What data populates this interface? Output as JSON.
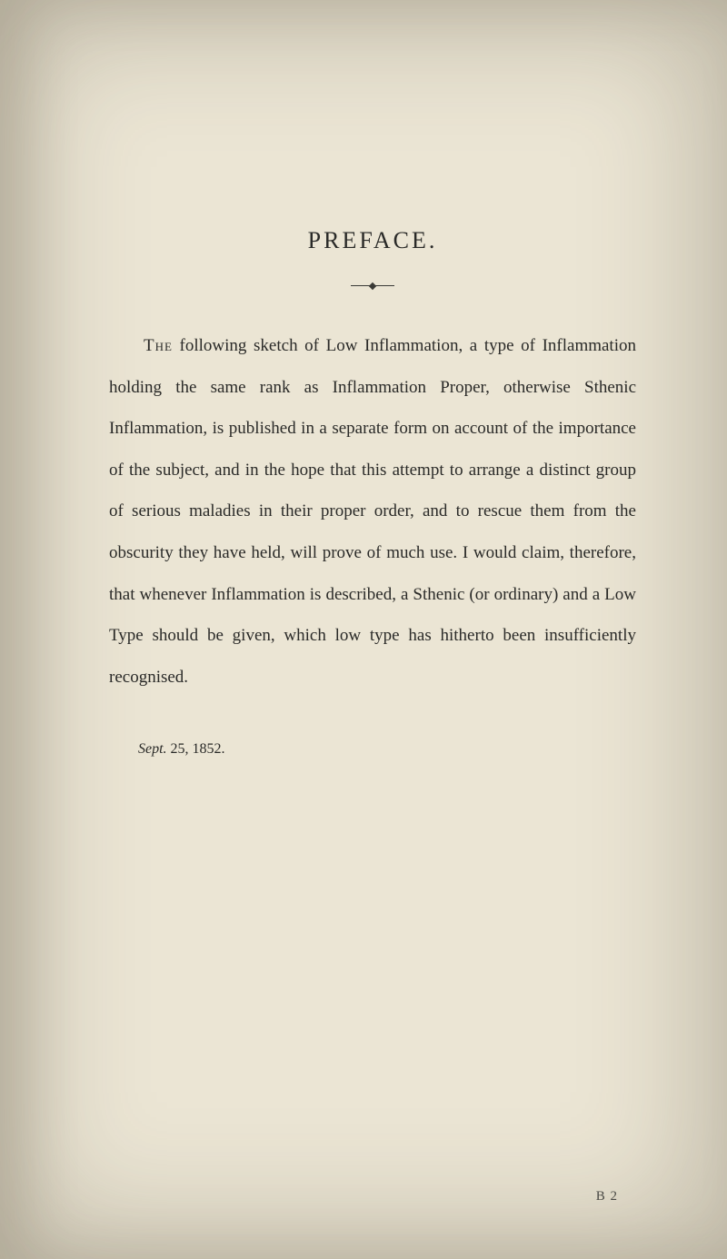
{
  "page": {
    "background_color": "#ebe5d4",
    "text_color": "#2a2a28",
    "title": "PREFACE.",
    "title_fontsize": 26,
    "title_letterspacing": 3,
    "divider_color": "#3a3a36",
    "body_fontsize": 19,
    "body_lineheight": 2.4,
    "opening_smallcaps": "The",
    "body_rest": " following sketch of Low Inflammation, a type of Inflammation holding the same rank as Inflammation Proper, otherwise Sthenic Inflammation, is published in a separate form on account of the importance of the subject, and in the hope that this attempt to arrange a distinct group of serious maladies in their proper order, and to rescue them from the obscurity they have held, will prove of much use. I would claim, therefore, that whenever Inflammation is described, a Sthenic (or ordinary) and a Low Type should be given, which low type has hitherto been insufficiently recognised.",
    "date_italic": "Sept.",
    "date_roman": " 25, 1852.",
    "date_fontsize": 16,
    "signature": "B 2",
    "signature_fontsize": 15,
    "signature_color": "#4a4a46"
  }
}
